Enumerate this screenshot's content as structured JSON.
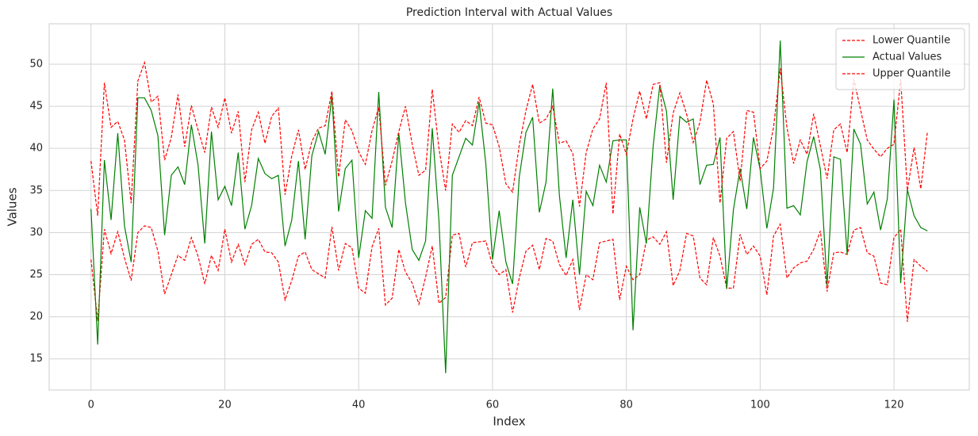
{
  "chart_data": {
    "type": "line",
    "title": "Prediction Interval with Actual Values",
    "xlabel": "Index",
    "ylabel": "Values",
    "xlim": [
      -6.25,
      131.25
    ],
    "xticks": [
      0,
      20,
      40,
      60,
      80,
      100,
      120
    ],
    "ylim": [
      11.3,
      54.8
    ],
    "yticks": [
      15,
      20,
      25,
      30,
      35,
      40,
      45,
      50
    ],
    "grid": true,
    "legend": "upper right",
    "x": [
      0,
      1,
      2,
      3,
      4,
      5,
      6,
      7,
      8,
      9,
      10,
      11,
      12,
      13,
      14,
      15,
      16,
      17,
      18,
      19,
      20,
      21,
      22,
      23,
      24,
      25,
      26,
      27,
      28,
      29,
      30,
      31,
      32,
      33,
      34,
      35,
      36,
      37,
      38,
      39,
      40,
      41,
      42,
      43,
      44,
      45,
      46,
      47,
      48,
      49,
      50,
      51,
      52,
      53,
      54,
      55,
      56,
      57,
      58,
      59,
      60,
      61,
      62,
      63,
      64,
      65,
      66,
      67,
      68,
      69,
      70,
      71,
      72,
      73,
      74,
      75,
      76,
      77,
      78,
      79,
      80,
      81,
      82,
      83,
      84,
      85,
      86,
      87,
      88,
      89,
      90,
      91,
      92,
      93,
      94,
      95,
      96,
      97,
      98,
      99,
      100,
      101,
      102,
      103,
      104,
      105,
      106,
      107,
      108,
      109,
      110,
      111,
      112,
      113,
      114,
      115,
      116,
      117,
      118,
      119,
      120,
      121,
      122,
      123,
      124,
      125
    ],
    "series": [
      {
        "name": "Lower Quantile",
        "color": "red",
        "linestyle": "dashed",
        "values": [
          26.8,
          19.5,
          30.4,
          27.5,
          30.1,
          27,
          24.3,
          30,
          30.8,
          30.6,
          27.8,
          22.7,
          25,
          27.3,
          26.7,
          29.4,
          27.2,
          23.9,
          27.3,
          25.5,
          30.4,
          26.5,
          28.6,
          26.2,
          28.6,
          29.2,
          27.7,
          27.6,
          26.5,
          22,
          24.3,
          27.2,
          27.7,
          25.6,
          25.1,
          24.6,
          30.7,
          25.5,
          28.7,
          28.2,
          23.4,
          22.8,
          28.3,
          30.5,
          21.4,
          22.2,
          28,
          25.3,
          24,
          21.5,
          24.7,
          28.4,
          21.6,
          22.3,
          29.7,
          29.9,
          25.9,
          28.8,
          28.9,
          29,
          26.1,
          25,
          25.6,
          20.5,
          24.6,
          27.8,
          28.5,
          25.6,
          29.3,
          29,
          26.2,
          24.9,
          26.8,
          20.8,
          25,
          24.4,
          28.8,
          29,
          29.2,
          22,
          26,
          24.4,
          25,
          29.1,
          29.5,
          28.6,
          30.1,
          23.7,
          25.5,
          29.9,
          29.6,
          24.6,
          23.8,
          29.4,
          27.2,
          23.4,
          23.4,
          29.8,
          27.4,
          28.4,
          27.2,
          22.6,
          29.6,
          31,
          24.6,
          25.8,
          26.4,
          26.6,
          28,
          30.2,
          23,
          27.6,
          27.7,
          27.4,
          30.3,
          30.6,
          27.6,
          27.2,
          24,
          23.8,
          29.4,
          30.4,
          19.4,
          26.8,
          26,
          25.4
        ]
      },
      {
        "name": "Actual Values",
        "color": "green",
        "linestyle": "solid",
        "values": [
          32.8,
          16.7,
          38.6,
          31.5,
          41.8,
          30.8,
          26.5,
          46,
          46,
          44.5,
          41.5,
          29.7,
          36.8,
          37.8,
          35.7,
          42.8,
          38,
          28.7,
          42,
          33.9,
          35.5,
          33.2,
          39.5,
          30.4,
          33.2,
          38.8,
          37,
          36.4,
          36.8,
          28.4,
          31.5,
          38.5,
          29.2,
          39.1,
          42,
          39.3,
          46.3,
          32.5,
          37.6,
          38.6,
          27,
          32.6,
          31.7,
          46.7,
          33,
          30.6,
          41.8,
          33.5,
          28,
          26.7,
          29,
          42.4,
          31.4,
          13.3,
          36.8,
          39,
          41.2,
          40.4,
          45.5,
          38.2,
          26.8,
          32.6,
          26.5,
          23.9,
          36.6,
          41.9,
          43.7,
          32.4,
          36,
          47.1,
          34.4,
          27,
          33.9,
          25,
          34.9,
          33.2,
          38,
          36,
          40.9,
          41,
          41,
          18.4,
          33,
          28.7,
          40.2,
          47.5,
          44.4,
          33.9,
          43.8,
          43.1,
          43.5,
          35.7,
          38,
          38.1,
          41.3,
          23.3,
          32.7,
          37.6,
          32.8,
          41.3,
          37.5,
          30.5,
          35.3,
          52.8,
          32.9,
          33.2,
          32.1,
          38.4,
          41.4,
          37.5,
          23.7,
          39,
          38.7,
          27.4,
          42.3,
          40.5,
          33.4,
          34.8,
          30.3,
          34,
          45.8,
          24,
          35.1,
          32,
          30.6,
          30.2
        ]
      },
      {
        "name": "Upper Quantile",
        "color": "red",
        "linestyle": "dashed",
        "values": [
          38.5,
          32,
          47.8,
          42.5,
          43.2,
          41,
          33.5,
          48,
          50.2,
          45.5,
          46.2,
          38.6,
          41.3,
          46.4,
          40.2,
          45.1,
          42.2,
          39.5,
          44.9,
          42.5,
          46,
          41.8,
          44.4,
          36,
          42.2,
          44.3,
          40.6,
          43.8,
          44.8,
          34.5,
          39.1,
          42.2,
          37.5,
          40.8,
          42.4,
          42.7,
          46.8,
          36.6,
          43.4,
          42.1,
          39.6,
          38.1,
          42.1,
          44.9,
          35.6,
          38.5,
          42,
          45,
          40.5,
          36.8,
          37.4,
          47,
          40,
          35,
          42.9,
          41.9,
          43.3,
          42.7,
          46.1,
          43,
          42.8,
          40.2,
          35.8,
          34.8,
          40.4,
          44.5,
          47.6,
          43,
          43.5,
          45,
          40.6,
          40.9,
          39.4,
          33.1,
          39.5,
          42.3,
          43.5,
          47.8,
          32.2,
          41.7,
          39.3,
          43.5,
          46.8,
          43.5,
          47.6,
          47.8,
          38.3,
          44.2,
          46.6,
          44.1,
          40.7,
          43.1,
          48.1,
          45.3,
          33.5,
          41.2,
          42,
          36.1,
          44.5,
          44.3,
          37.6,
          38.5,
          42.5,
          49.5,
          42.5,
          38.2,
          41,
          39.3,
          44.1,
          40.3,
          36.4,
          42.2,
          42.9,
          39.5,
          48.2,
          44.6,
          41,
          39.9,
          39,
          40,
          40.5,
          48.2,
          35,
          40.1,
          35.2,
          42
        ]
      }
    ]
  }
}
